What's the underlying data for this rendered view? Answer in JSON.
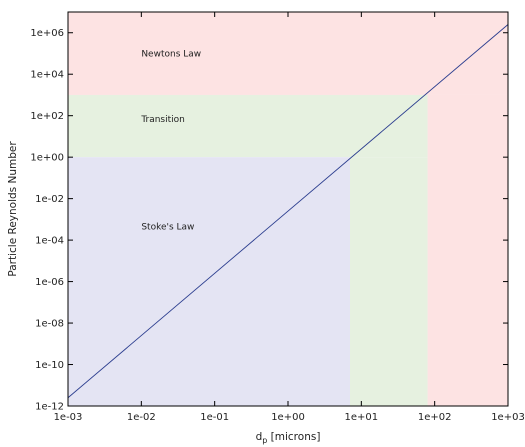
{
  "chart_data": {
    "type": "line",
    "xlabel": "d",
    "xlabel_sub": "p",
    "xlabel_units": " [microns]",
    "ylabel": "Particle Reynolds Number",
    "x_scale": "log",
    "y_scale": "log",
    "xlim": [
      0.001,
      1000
    ],
    "ylim": [
      1e-12,
      10000000.0
    ],
    "x_ticks": [
      {
        "value": 0.001,
        "label": "1e-03"
      },
      {
        "value": 0.01,
        "label": "1e-02"
      },
      {
        "value": 0.1,
        "label": "1e-01"
      },
      {
        "value": 1,
        "label": "1e+00"
      },
      {
        "value": 10,
        "label": "1e+01"
      },
      {
        "value": 100,
        "label": "1e+02"
      },
      {
        "value": 1000,
        "label": "1e+03"
      }
    ],
    "y_ticks": [
      {
        "value": 1e-12,
        "label": "1e-12"
      },
      {
        "value": 1e-10,
        "label": "1e-10"
      },
      {
        "value": 1e-08,
        "label": "1e-08"
      },
      {
        "value": 1e-06,
        "label": "1e-06"
      },
      {
        "value": 0.0001,
        "label": "1e-04"
      },
      {
        "value": 0.01,
        "label": "1e-02"
      },
      {
        "value": 1,
        "label": "1e+00"
      },
      {
        "value": 100,
        "label": "1e+02"
      },
      {
        "value": 10000.0,
        "label": "1e+04"
      },
      {
        "value": 1000000.0,
        "label": "1e+06"
      }
    ],
    "regions": [
      {
        "name": "Newtons Law",
        "x_range": [
          0.001,
          1000
        ],
        "y_range": [
          1000,
          10000000.0
        ],
        "color": "#fde3e3",
        "label_at": {
          "x": 0.01,
          "y": 70000.0
        }
      },
      {
        "name": "Newtons Law",
        "x_range": [
          80,
          1000
        ],
        "y_range": [
          1e-12,
          1000
        ],
        "color": "#fde3e3",
        "label_at": null
      },
      {
        "name": "Transition",
        "x_range": [
          0.001,
          80
        ],
        "y_range": [
          1,
          1000
        ],
        "color": "#e6f1e0",
        "label_at": {
          "x": 0.01,
          "y": 50
        }
      },
      {
        "name": "Transition",
        "x_range": [
          7,
          80
        ],
        "y_range": [
          1e-12,
          1
        ],
        "color": "#e6f1e0",
        "label_at": null
      },
      {
        "name": "Stoke's Law",
        "x_range": [
          0.001,
          7
        ],
        "y_range": [
          1e-12,
          1
        ],
        "color": "#e4e4f3",
        "label_at": {
          "x": 0.01,
          "y": 0.00032
        }
      }
    ],
    "series": [
      {
        "color": "#2c3e8f",
        "x": [
          0.001,
          1000
        ],
        "y": [
          2.5e-12,
          2500000.0
        ]
      }
    ],
    "grid": false,
    "legend": "none"
  }
}
